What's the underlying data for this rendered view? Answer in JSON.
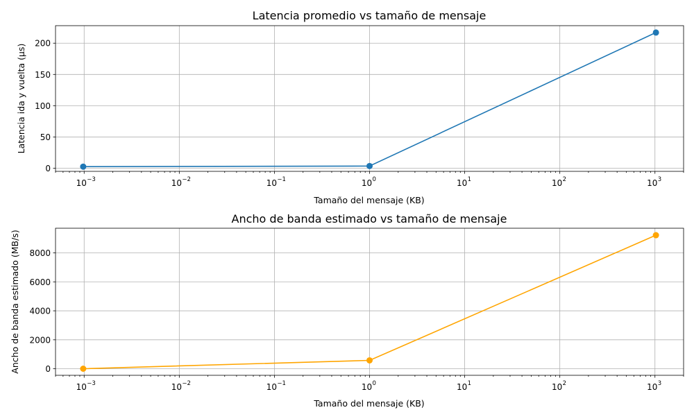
{
  "chart_data": [
    {
      "type": "line",
      "title": "Latencia promedio vs tamaño de mensaje",
      "xlabel": "Tamaño del mensaje (KB)",
      "ylabel": "Latencia ida y vuelta (µs)",
      "xscale": "log",
      "xlim": [
        0.0005,
        2000
      ],
      "ylim": [
        -5,
        228
      ],
      "xticks": [
        0.001,
        0.01,
        0.1,
        1,
        10,
        100,
        1000
      ],
      "xtick_labels": [
        {
          "base": "10",
          "exp": "−3"
        },
        {
          "base": "10",
          "exp": "−2"
        },
        {
          "base": "10",
          "exp": "−1"
        },
        {
          "base": "10",
          "exp": "0"
        },
        {
          "base": "10",
          "exp": "1"
        },
        {
          "base": "10",
          "exp": "2"
        },
        {
          "base": "10",
          "exp": "3"
        }
      ],
      "yticks": [
        0,
        50,
        100,
        150,
        200
      ],
      "grid": true,
      "series": [
        {
          "x": [
            0.000977,
            1,
            1024
          ],
          "y": [
            2.5,
            3.5,
            217
          ],
          "color": "#1f77b4",
          "marker": "circle"
        }
      ]
    },
    {
      "type": "line",
      "title": "Ancho de banda estimado vs tamaño de mensaje",
      "xlabel": "Tamaño del mensaje (KB)",
      "ylabel": "Ancho de banda estimado (MB/s)",
      "xscale": "log",
      "xlim": [
        0.0005,
        2000
      ],
      "ylim": [
        -450,
        9700
      ],
      "xticks": [
        0.001,
        0.01,
        0.1,
        1,
        10,
        100,
        1000
      ],
      "xtick_labels": [
        {
          "base": "10",
          "exp": "−3"
        },
        {
          "base": "10",
          "exp": "−2"
        },
        {
          "base": "10",
          "exp": "−1"
        },
        {
          "base": "10",
          "exp": "0"
        },
        {
          "base": "10",
          "exp": "1"
        },
        {
          "base": "10",
          "exp": "2"
        },
        {
          "base": "10",
          "exp": "3"
        }
      ],
      "yticks": [
        0,
        2000,
        4000,
        6000,
        8000
      ],
      "grid": true,
      "series": [
        {
          "x": [
            0.000977,
            1,
            1024
          ],
          "y": [
            5,
            580,
            9220
          ],
          "color": "#ffa500",
          "marker": "circle"
        }
      ]
    }
  ]
}
